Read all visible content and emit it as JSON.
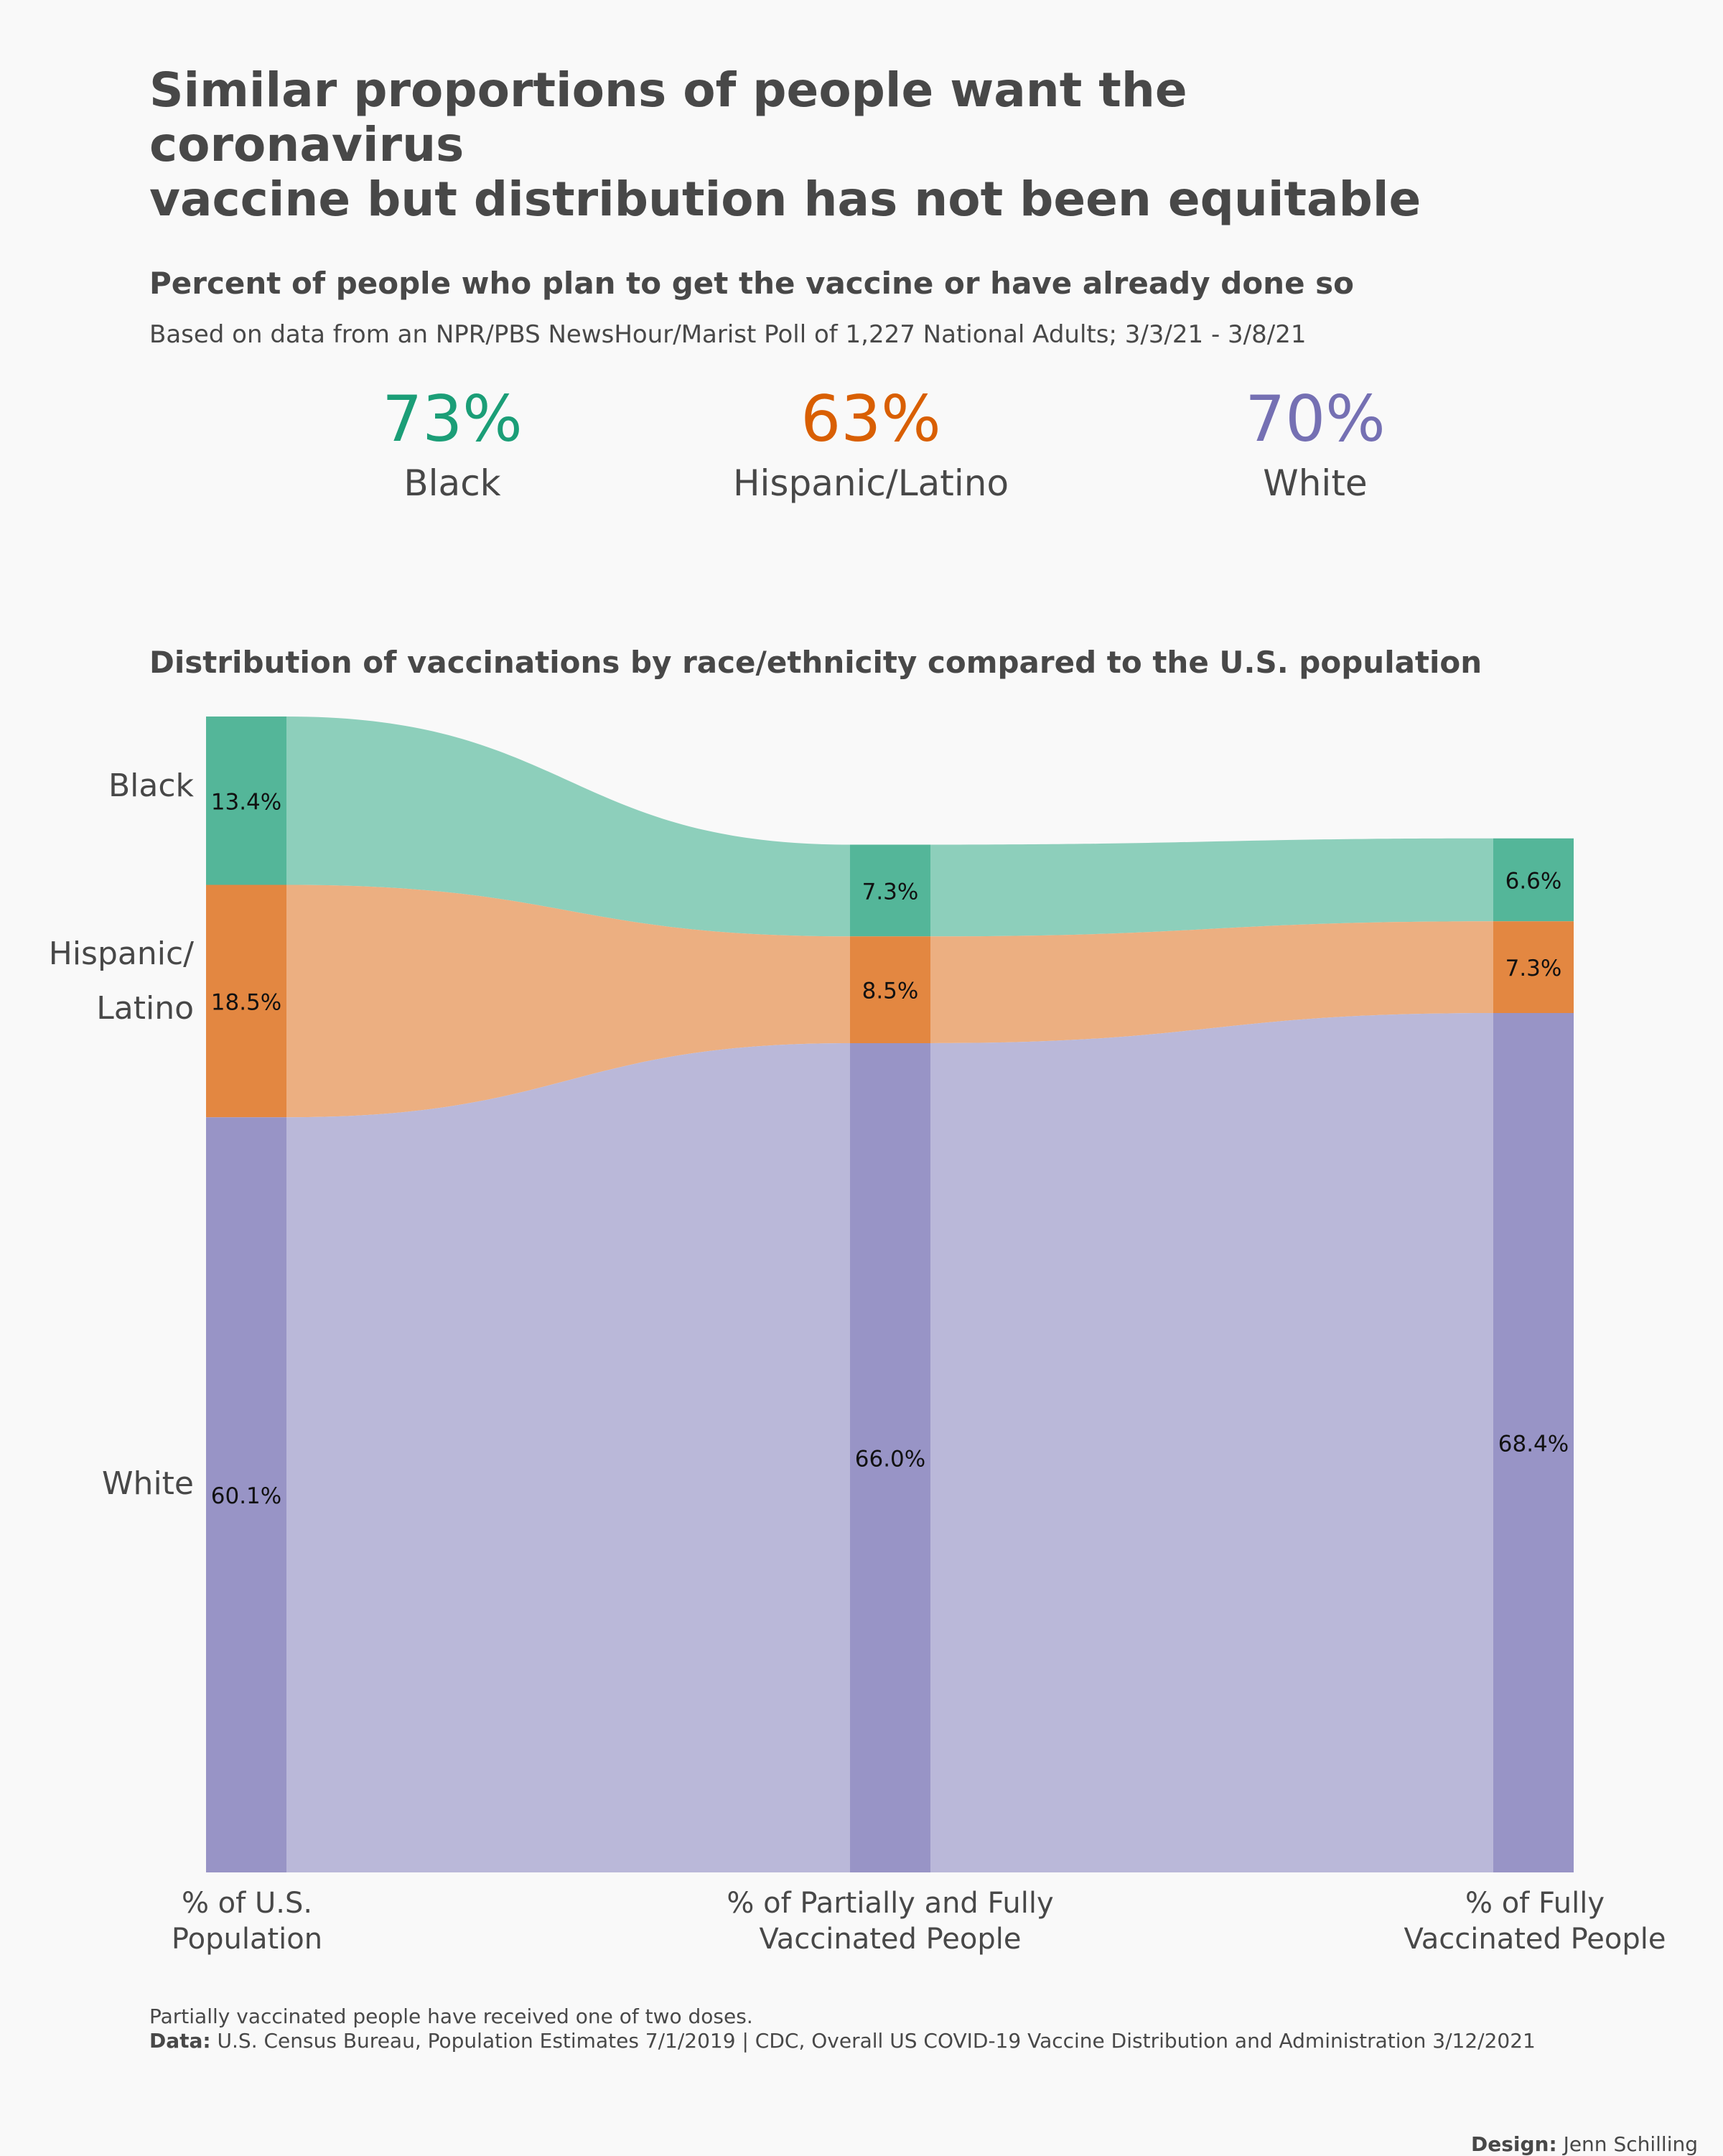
{
  "header": {
    "title_line1": "Similar proportions of people want the coronavirus",
    "title_line2": "vaccine but distribution has not been equitable"
  },
  "survey": {
    "title": "Percent of people who plan to get the vaccine or have already done so",
    "note": "Based on data from an NPR/PBS NewsHour/Marist Poll of 1,227 National Adults; 3/3/21 - 3/8/21",
    "stats": [
      {
        "value": "73%",
        "label": "Black",
        "color": "#1b9e77"
      },
      {
        "value": "63%",
        "label": "Hispanic/Latino",
        "color": "#d95f02"
      },
      {
        "value": "70%",
        "label": "White",
        "color": "#7570b3"
      }
    ]
  },
  "chart_data": {
    "type": "sankey",
    "title": "Distribution of vaccinations by race/ethnicity compared to the U.S. population",
    "stages": [
      "% of U.S.\nPopulation",
      "% of Partially and Fully\nVaccinated People",
      "% of Fully\nVaccinated People"
    ],
    "stage_label_lines": [
      [
        "% of U.S.",
        "Population"
      ],
      [
        "% of Partially and Fully",
        "Vaccinated People"
      ],
      [
        "% of Fully",
        "Vaccinated People"
      ]
    ],
    "series": [
      {
        "name": "Black",
        "values": [
          13.4,
          7.3,
          6.6
        ],
        "labels": [
          "13.4%",
          "7.3%",
          "6.6%"
        ],
        "color": "#1b9e77"
      },
      {
        "name": "Hispanic/Latino",
        "values": [
          18.5,
          8.5,
          7.3
        ],
        "labels": [
          "18.5%",
          "8.5%",
          "7.3%"
        ],
        "color": "#d95f02"
      },
      {
        "name": "White",
        "values": [
          60.1,
          66.0,
          68.4
        ],
        "labels": [
          "60.1%",
          "66.0%",
          "68.4%"
        ],
        "color": "#7570b3"
      }
    ],
    "row_labels": [
      "Black",
      "Hispanic/",
      "Latino",
      "White"
    ]
  },
  "footer": {
    "partial_note": "Partially vaccinated people have received one of two doses.",
    "data_label": "Data:",
    "data_sources": "U.S. Census Bureau, Population Estimates 7/1/2019 | CDC, Overall US COVID-19 Vaccine Distribution and Administration 3/12/2021",
    "design_label": "Design:",
    "designer": "Jenn Schilling"
  }
}
